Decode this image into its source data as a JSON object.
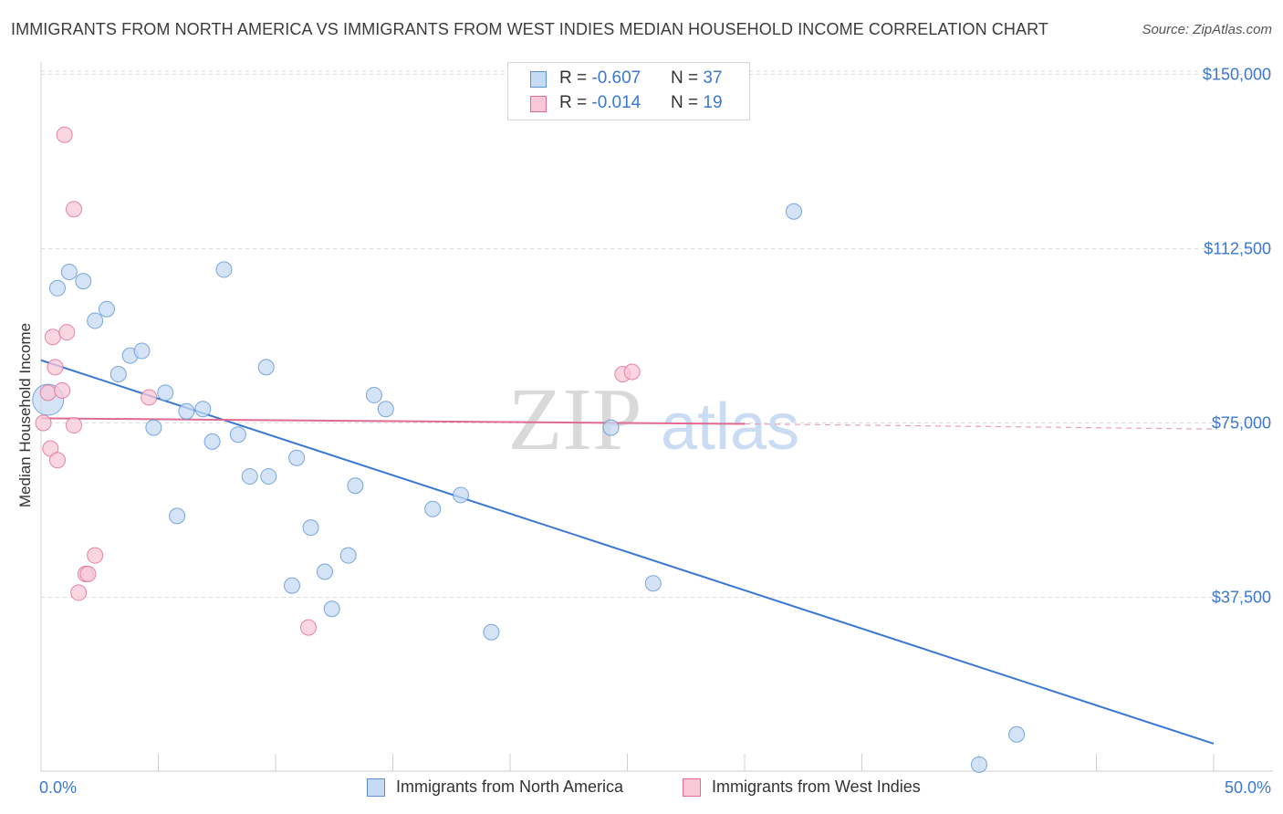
{
  "header": {
    "title": "IMMIGRANTS FROM NORTH AMERICA VS IMMIGRANTS FROM WEST INDIES MEDIAN HOUSEHOLD INCOME CORRELATION CHART",
    "source": "Source: ZipAtlas.com"
  },
  "watermark": {
    "zip": "ZIP",
    "atlas": "atlas"
  },
  "legend_top": [
    {
      "r_label": "R = ",
      "r_value": "-0.607",
      "n_label": "N = ",
      "n_value": "37"
    },
    {
      "r_label": "R = ",
      "r_value": "-0.014",
      "n_label": "N = ",
      "n_value": "19"
    }
  ],
  "legend_bottom": [
    {
      "label": "Immigrants from North America"
    },
    {
      "label": "Immigrants from West Indies"
    }
  ],
  "chart_data": {
    "type": "scatter",
    "title": "IMMIGRANTS FROM NORTH AMERICA VS IMMIGRANTS FROM WEST INDIES MEDIAN HOUSEHOLD INCOME CORRELATION CHART",
    "xlabel": "",
    "ylabel": "Median Household Income",
    "xlim": [
      0,
      50
    ],
    "ylim": [
      0,
      155000
    ],
    "x_tick_labels": [
      "0.0%",
      "50.0%"
    ],
    "y_ticks": [
      37500,
      75000,
      112500,
      150000
    ],
    "y_tick_labels": [
      "$37,500",
      "$75,000",
      "$112,500",
      "$150,000"
    ],
    "grid": "horizontal dashed",
    "legend_placement": "top-center and bottom",
    "series": [
      {
        "name": "Immigrants from North America",
        "color": "#5b93d6",
        "fill": "#c5daf3",
        "r": -0.607,
        "n": 37,
        "trend": {
          "x0": 0.0,
          "y0": 88500,
          "x1": 50.0,
          "y1": 6000
        },
        "points": [
          {
            "x": 0.3,
            "y": 80000,
            "big": true
          },
          {
            "x": 0.7,
            "y": 104000
          },
          {
            "x": 1.2,
            "y": 107500
          },
          {
            "x": 1.8,
            "y": 105500
          },
          {
            "x": 2.3,
            "y": 97000
          },
          {
            "x": 2.8,
            "y": 99500
          },
          {
            "x": 3.3,
            "y": 85500
          },
          {
            "x": 3.8,
            "y": 89500
          },
          {
            "x": 4.3,
            "y": 90500
          },
          {
            "x": 4.8,
            "y": 74000
          },
          {
            "x": 5.3,
            "y": 81500
          },
          {
            "x": 5.8,
            "y": 55000
          },
          {
            "x": 6.2,
            "y": 77500
          },
          {
            "x": 6.9,
            "y": 78000
          },
          {
            "x": 7.3,
            "y": 71000
          },
          {
            "x": 7.8,
            "y": 108000
          },
          {
            "x": 8.4,
            "y": 72500
          },
          {
            "x": 8.9,
            "y": 63500
          },
          {
            "x": 9.6,
            "y": 87000
          },
          {
            "x": 9.7,
            "y": 63500
          },
          {
            "x": 10.7,
            "y": 40000
          },
          {
            "x": 10.9,
            "y": 67500
          },
          {
            "x": 11.5,
            "y": 52500
          },
          {
            "x": 12.1,
            "y": 43000
          },
          {
            "x": 12.4,
            "y": 35000
          },
          {
            "x": 13.1,
            "y": 46500
          },
          {
            "x": 13.4,
            "y": 61500
          },
          {
            "x": 14.2,
            "y": 81000
          },
          {
            "x": 14.7,
            "y": 78000
          },
          {
            "x": 16.7,
            "y": 56500
          },
          {
            "x": 17.9,
            "y": 59500
          },
          {
            "x": 19.2,
            "y": 30000
          },
          {
            "x": 24.3,
            "y": 74000
          },
          {
            "x": 26.1,
            "y": 40500
          },
          {
            "x": 32.1,
            "y": 120500
          },
          {
            "x": 41.6,
            "y": 8000
          },
          {
            "x": 40.0,
            "y": 1500
          }
        ]
      },
      {
        "name": "Immigrants from West Indies",
        "color": "#e06b91",
        "fill": "#f8c8d7",
        "r": -0.014,
        "n": 19,
        "trend": {
          "x0": 0.0,
          "y0": 76000,
          "x1": 30.0,
          "y1": 74800
        },
        "trend_dashed": {
          "x0": 30.0,
          "y0": 74800,
          "x1": 50.0,
          "y1": 73700
        },
        "points": [
          {
            "x": 0.1,
            "y": 75000
          },
          {
            "x": 0.3,
            "y": 81500
          },
          {
            "x": 0.4,
            "y": 69500
          },
          {
            "x": 0.5,
            "y": 93500
          },
          {
            "x": 0.6,
            "y": 87000
          },
          {
            "x": 0.7,
            "y": 67000
          },
          {
            "x": 0.9,
            "y": 82000
          },
          {
            "x": 1.0,
            "y": 137000
          },
          {
            "x": 1.1,
            "y": 94500
          },
          {
            "x": 1.4,
            "y": 74500
          },
          {
            "x": 1.4,
            "y": 121000
          },
          {
            "x": 1.6,
            "y": 38500
          },
          {
            "x": 1.9,
            "y": 42500
          },
          {
            "x": 2.0,
            "y": 42500
          },
          {
            "x": 2.3,
            "y": 46500
          },
          {
            "x": 4.6,
            "y": 80500
          },
          {
            "x": 11.4,
            "y": 31000
          },
          {
            "x": 24.8,
            "y": 85500
          },
          {
            "x": 25.2,
            "y": 86000
          }
        ]
      }
    ]
  }
}
